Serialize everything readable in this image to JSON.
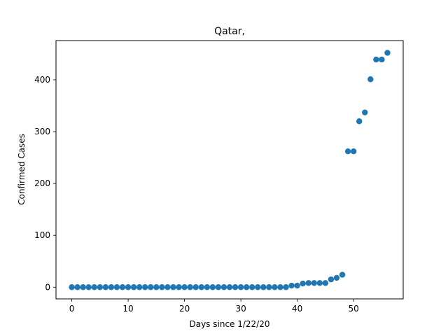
{
  "chart_data": {
    "type": "scatter",
    "title": "Qatar,",
    "xlabel": "Days since 1/22/20",
    "ylabel": "Confirmed Cases",
    "xlim": [
      -2.8,
      58.8
    ],
    "ylim": [
      -22.6,
      475.6
    ],
    "xticks": [
      0,
      10,
      20,
      30,
      40,
      50
    ],
    "yticks": [
      0,
      100,
      200,
      300,
      400
    ],
    "grid": false,
    "color": "#1f77b4",
    "series": [
      {
        "x": [
          0,
          1,
          2,
          3,
          4,
          5,
          6,
          7,
          8,
          9,
          10,
          11,
          12,
          13,
          14,
          15,
          16,
          17,
          18,
          19,
          20,
          21,
          22,
          23,
          24,
          25,
          26,
          27,
          28,
          29,
          30,
          31,
          32,
          33,
          34,
          35,
          36,
          37,
          38,
          39,
          40,
          41,
          42,
          43,
          44,
          45,
          46,
          47,
          48,
          49,
          50,
          51,
          52,
          53,
          54,
          55,
          56
        ],
        "y": [
          0,
          0,
          0,
          0,
          0,
          0,
          0,
          0,
          0,
          0,
          0,
          0,
          0,
          0,
          0,
          0,
          0,
          0,
          0,
          0,
          0,
          0,
          0,
          0,
          0,
          0,
          0,
          0,
          0,
          0,
          0,
          0,
          0,
          0,
          0,
          0,
          0,
          0,
          0,
          3,
          3,
          7,
          8,
          8,
          8,
          8,
          15,
          18,
          24,
          262,
          262,
          320,
          337,
          401,
          439,
          439,
          452
        ]
      }
    ]
  }
}
